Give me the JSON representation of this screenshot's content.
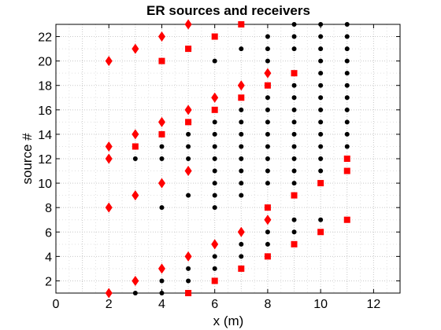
{
  "chart_data": {
    "type": "scatter",
    "title": "ER sources and receivers",
    "xlabel": "x (m)",
    "ylabel": "source #",
    "xlim": [
      0,
      13
    ],
    "ylim": [
      1,
      23
    ],
    "xticks": [
      0,
      2,
      4,
      6,
      8,
      10,
      12
    ],
    "yticks": [
      2,
      4,
      6,
      8,
      10,
      12,
      14,
      16,
      18,
      20,
      22
    ],
    "grid": "major and minor, dotted",
    "colors": {
      "diamond": "#ff0000",
      "square": "#ff0000",
      "dot": "#000000"
    },
    "series": [
      {
        "marker": "diamond",
        "points": [
          [
            2,
            1
          ],
          [
            3,
            2
          ],
          [
            4,
            3
          ],
          [
            5,
            4
          ],
          [
            6,
            5
          ],
          [
            7,
            6
          ],
          [
            8,
            7
          ],
          [
            2,
            8
          ],
          [
            3,
            9
          ],
          [
            4,
            10
          ],
          [
            5,
            11
          ],
          [
            2,
            12
          ],
          [
            2,
            13
          ],
          [
            3,
            14
          ],
          [
            4,
            15
          ],
          [
            5,
            16
          ],
          [
            6,
            17
          ],
          [
            7,
            18
          ],
          [
            8,
            19
          ],
          [
            2,
            20
          ],
          [
            3,
            21
          ],
          [
            4,
            22
          ],
          [
            5,
            23
          ]
        ]
      },
      {
        "marker": "square",
        "points": [
          [
            5,
            1
          ],
          [
            6,
            2
          ],
          [
            7,
            3
          ],
          [
            8,
            4
          ],
          [
            9,
            5
          ],
          [
            10,
            6
          ],
          [
            11,
            7
          ],
          [
            8,
            8
          ],
          [
            9,
            9
          ],
          [
            10,
            10
          ],
          [
            11,
            11
          ],
          [
            11,
            12
          ],
          [
            3,
            13
          ],
          [
            4,
            14
          ],
          [
            5,
            15
          ],
          [
            6,
            16
          ],
          [
            7,
            17
          ],
          [
            8,
            18
          ],
          [
            9,
            19
          ],
          [
            4,
            20
          ],
          [
            5,
            21
          ],
          [
            6,
            22
          ],
          [
            7,
            23
          ]
        ]
      },
      {
        "marker": "dot",
        "points": [
          [
            3,
            1
          ],
          [
            4,
            1
          ],
          [
            4,
            2
          ],
          [
            5,
            2
          ],
          [
            5,
            3
          ],
          [
            6,
            3
          ],
          [
            6,
            4
          ],
          [
            7,
            4
          ],
          [
            7,
            5
          ],
          [
            8,
            5
          ],
          [
            8,
            6
          ],
          [
            9,
            6
          ],
          [
            9,
            7
          ],
          [
            10,
            7
          ],
          [
            4,
            8
          ],
          [
            6,
            8
          ],
          [
            5,
            9
          ],
          [
            6,
            9
          ],
          [
            7,
            9
          ],
          [
            6,
            10
          ],
          [
            7,
            10
          ],
          [
            8,
            10
          ],
          [
            9,
            10
          ],
          [
            6,
            11
          ],
          [
            7,
            11
          ],
          [
            8,
            11
          ],
          [
            9,
            11
          ],
          [
            10,
            11
          ],
          [
            3,
            12
          ],
          [
            4,
            12
          ],
          [
            5,
            12
          ],
          [
            6,
            12
          ],
          [
            7,
            12
          ],
          [
            8,
            12
          ],
          [
            9,
            12
          ],
          [
            10,
            12
          ],
          [
            4,
            13
          ],
          [
            5,
            13
          ],
          [
            6,
            13
          ],
          [
            7,
            13
          ],
          [
            8,
            13
          ],
          [
            9,
            13
          ],
          [
            10,
            13
          ],
          [
            11,
            13
          ],
          [
            5,
            14
          ],
          [
            6,
            14
          ],
          [
            7,
            14
          ],
          [
            8,
            14
          ],
          [
            9,
            14
          ],
          [
            10,
            14
          ],
          [
            11,
            14
          ],
          [
            6,
            15
          ],
          [
            7,
            15
          ],
          [
            8,
            15
          ],
          [
            9,
            15
          ],
          [
            10,
            15
          ],
          [
            11,
            15
          ],
          [
            7,
            16
          ],
          [
            8,
            16
          ],
          [
            9,
            16
          ],
          [
            10,
            16
          ],
          [
            11,
            16
          ],
          [
            8,
            17
          ],
          [
            9,
            17
          ],
          [
            10,
            17
          ],
          [
            11,
            17
          ],
          [
            9,
            18
          ],
          [
            10,
            18
          ],
          [
            11,
            18
          ],
          [
            10,
            19
          ],
          [
            11,
            19
          ],
          [
            6,
            20
          ],
          [
            8,
            20
          ],
          [
            10,
            20
          ],
          [
            11,
            20
          ],
          [
            7,
            21
          ],
          [
            8,
            21
          ],
          [
            9,
            21
          ],
          [
            10,
            21
          ],
          [
            11,
            21
          ],
          [
            8,
            22
          ],
          [
            9,
            22
          ],
          [
            10,
            22
          ],
          [
            11,
            22
          ],
          [
            9,
            23
          ],
          [
            10,
            23
          ],
          [
            11,
            23
          ]
        ]
      }
    ]
  }
}
